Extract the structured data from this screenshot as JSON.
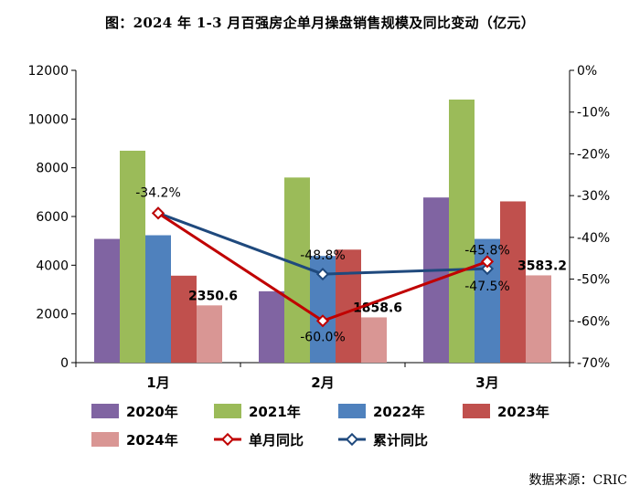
{
  "chart_data": {
    "type": "bar",
    "title": "图：2024 年 1-3 月百强房企单月操盘销售规模及同比变动（亿元）",
    "categories": [
      "1月",
      "2月",
      "3月"
    ],
    "ylim": [
      0,
      12000
    ],
    "yticks": [
      "0",
      "2000",
      "4000",
      "6000",
      "8000",
      "10000",
      "12000"
    ],
    "y2lim": [
      -70,
      0
    ],
    "y2ticks": [
      "-70%",
      "-60%",
      "-50%",
      "-40%",
      "-30%",
      "-20%",
      "-10%",
      "0%"
    ],
    "series": [
      {
        "name": "2020年",
        "color": "#8064a2",
        "values": [
          5080,
          2930,
          6780
        ]
      },
      {
        "name": "2021年",
        "color": "#9bbb59",
        "values": [
          8700,
          7600,
          10800
        ]
      },
      {
        "name": "2022年",
        "color": "#4f81bd",
        "values": [
          5230,
          4380,
          5080
        ]
      },
      {
        "name": "2023年",
        "color": "#c0504d",
        "values": [
          3570,
          4640,
          6620
        ]
      },
      {
        "name": "2024年",
        "color": "#d99694",
        "values": [
          2350.6,
          1858.6,
          3583.2
        ],
        "labels": [
          "2350.6",
          "1858.6",
          "3583.2"
        ]
      }
    ],
    "lines": [
      {
        "name": "单月同比",
        "color": "#c00000",
        "values": [
          -34.2,
          -60.0,
          -45.8
        ],
        "labels": [
          "",
          "-60.0%",
          "-45.8%"
        ]
      },
      {
        "name": "累计同比",
        "color": "#1f497d",
        "values": [
          -34.2,
          -48.8,
          -47.5
        ],
        "labels": [
          "-34.2%",
          "-48.8%",
          "-47.5%"
        ]
      }
    ]
  },
  "source": "数据来源：CRIC"
}
